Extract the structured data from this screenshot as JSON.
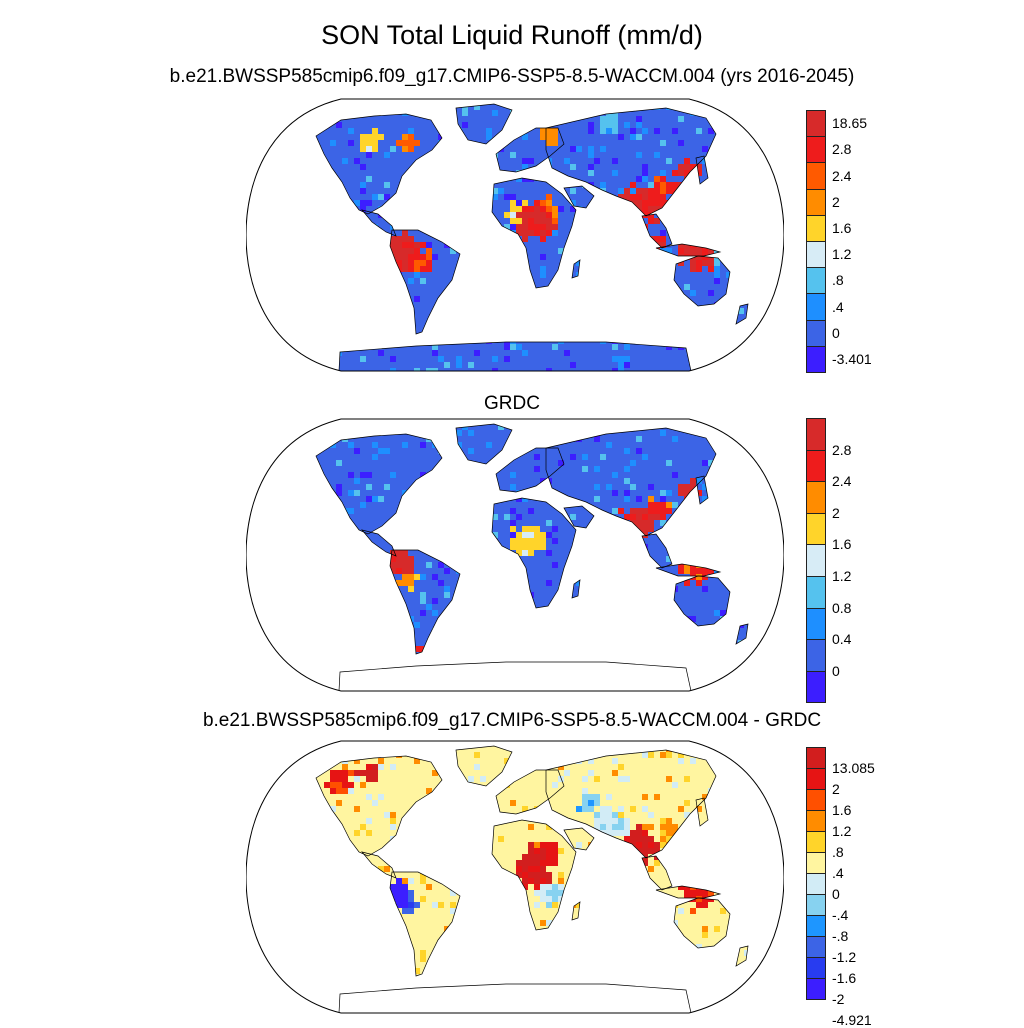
{
  "title": "SON Total Liquid Runoff (mm/d)",
  "panels": [
    {
      "id": "model",
      "title": "b.e21.BWSSP585cmip6.f09_g17.CMIP6-SSP5-8.5-WACCM.004 (yrs 2016-2045)",
      "colorbar": {
        "colors": [
          "#d72a2a",
          "#ee1c1c",
          "#ff5a00",
          "#ff8c00",
          "#ffd42a",
          "#d7ecf6",
          "#55c2ee",
          "#1e8fff",
          "#3c64e6",
          "#3c1eff"
        ],
        "labels": [
          "18.65",
          "2.8",
          "2.4",
          "2",
          "1.6",
          "1.2",
          ".8",
          ".4",
          "0",
          "-3.401"
        ]
      }
    },
    {
      "id": "obs",
      "title": "GRDC",
      "colorbar": {
        "colors": [
          "#d72a2a",
          "#ee1c1c",
          "#ff8c00",
          "#ffd42a",
          "#d7ecf6",
          "#55c2ee",
          "#1e8fff",
          "#3c64e6",
          "#3c1eff"
        ],
        "labels": [
          "2.8",
          "2.4",
          "2",
          "1.6",
          "1.2",
          "0.8",
          "0.4",
          "0"
        ]
      }
    },
    {
      "id": "diff",
      "title": "b.e21.BWSSP585cmip6.f09_g17.CMIP6-SSP5-8.5-WACCM.004 - GRDC",
      "colorbar": {
        "colors": [
          "#d21e1e",
          "#e61414",
          "#ff5000",
          "#ff8c00",
          "#ffd42a",
          "#fff5a0",
          "#d2ecf6",
          "#87d2f0",
          "#1e96ff",
          "#3c64e6",
          "#283cf0",
          "#3c1eff"
        ],
        "labels": [
          "13.085",
          "2",
          "1.6",
          "1.2",
          ".8",
          ".4",
          "0",
          "-.4",
          "-.8",
          "-1.2",
          "-1.6",
          "-2",
          "-4.921"
        ]
      }
    }
  ]
}
